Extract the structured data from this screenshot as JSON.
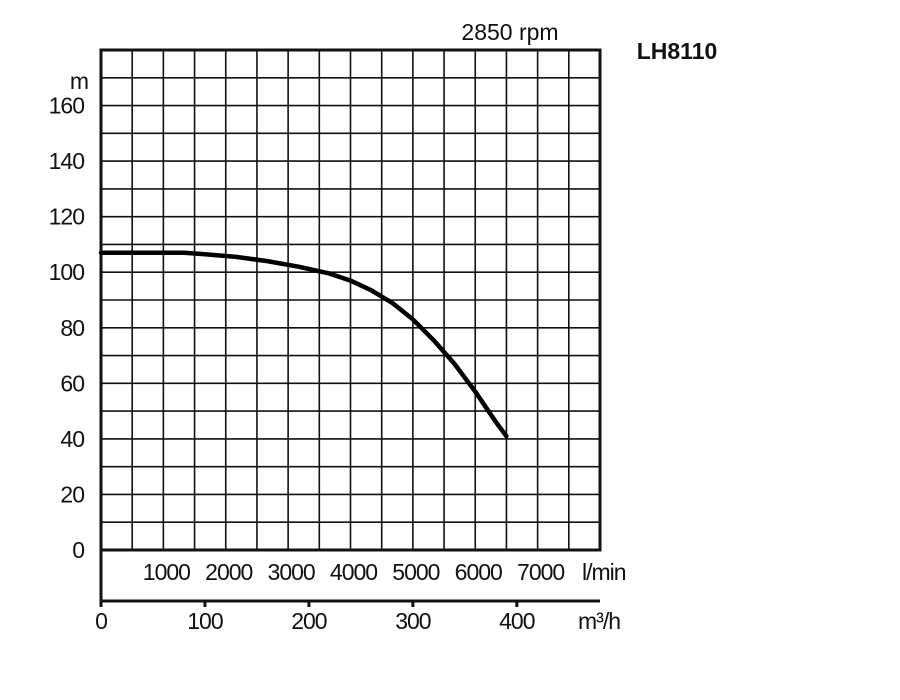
{
  "chart_data": {
    "type": "line",
    "title": "2850 rpm",
    "model": "LH8110",
    "ylabel": "m",
    "ylim": [
      0,
      180
    ],
    "yticks": [
      "0",
      "20",
      "40",
      "60",
      "80",
      "100",
      "120",
      "140",
      "160"
    ],
    "xlim_m3h": [
      0,
      480
    ],
    "x_m3h_ticks": [
      "0",
      "100",
      "200",
      "300",
      "400"
    ],
    "x_m3h_unit": "m³/h",
    "x_lmin_ticks": [
      "1000",
      "2000",
      "3000",
      "4000",
      "5000",
      "6000",
      "7000"
    ],
    "x_lmin_unit": "l/min",
    "grid": true,
    "series": [
      {
        "x": [
          0,
          60,
          80,
          100,
          130,
          160,
          190,
          220,
          240,
          260,
          280,
          300,
          320,
          340,
          360,
          380,
          390
        ],
        "y": [
          107,
          107,
          107,
          106.5,
          105.5,
          104,
          102,
          99.5,
          97,
          93.5,
          89,
          83,
          75.5,
          67,
          57,
          46,
          41
        ]
      }
    ]
  }
}
